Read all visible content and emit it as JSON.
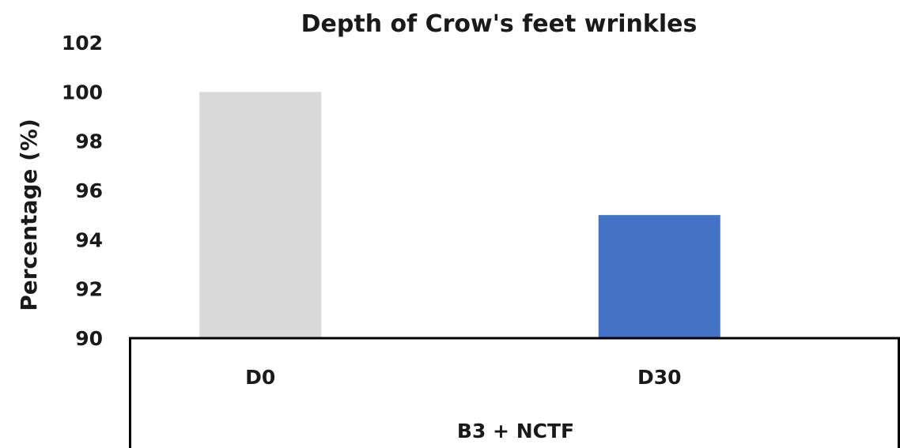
{
  "chart_data": {
    "type": "bar",
    "title": "Depth of Crow's feet wrinkles",
    "ylabel": "Percentage (%)",
    "xlabel": "",
    "group_label": "B3 + NCTF",
    "categories": [
      "D0",
      "D30"
    ],
    "values": [
      100,
      95
    ],
    "bar_colors": [
      "#d9d9d9",
      "#4472c4"
    ],
    "ylim": [
      90,
      102
    ],
    "yticks": [
      90,
      92,
      94,
      96,
      98,
      100,
      102
    ],
    "grid": false,
    "legend": "none"
  }
}
